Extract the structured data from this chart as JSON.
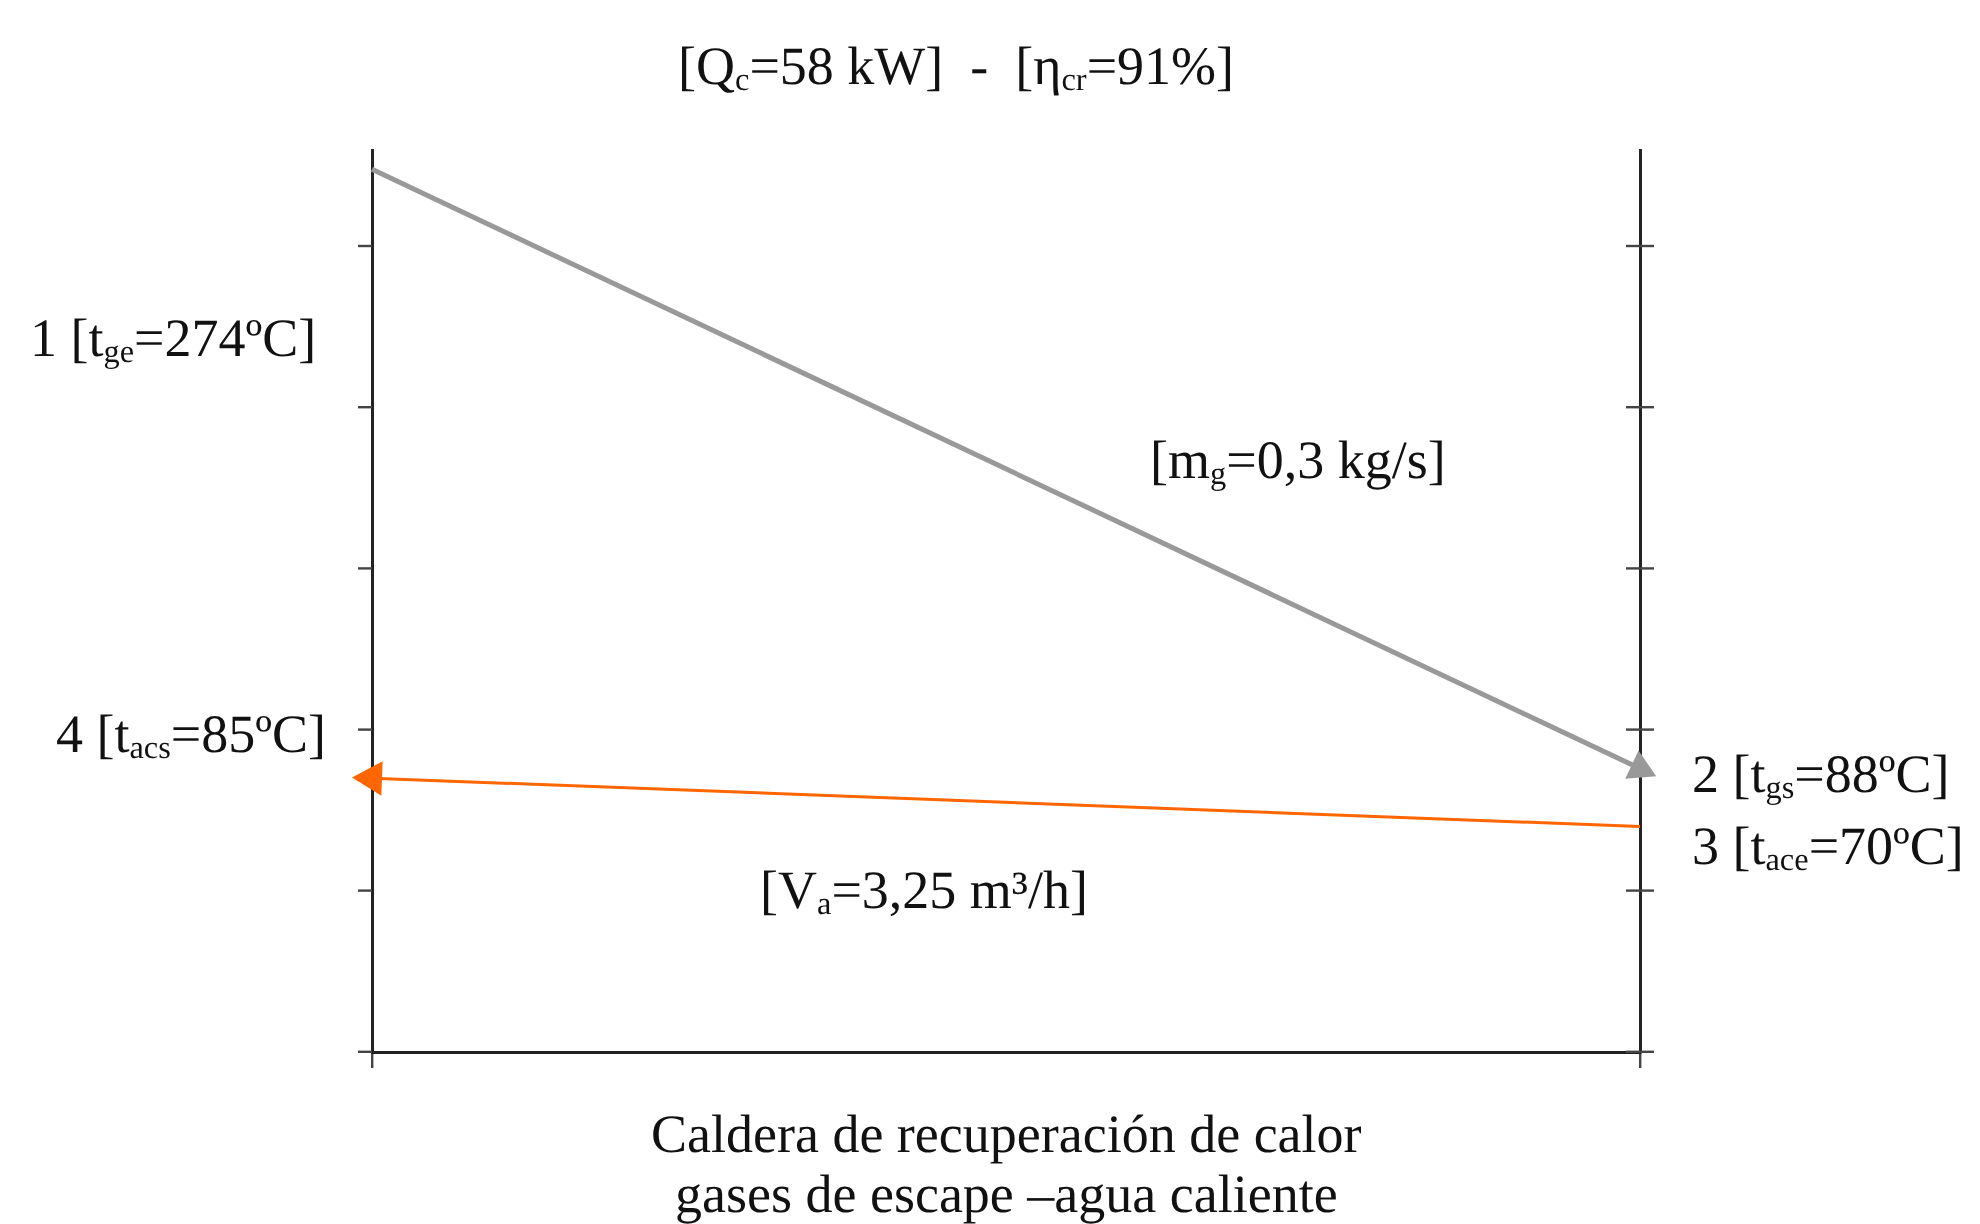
{
  "chart_data": {
    "type": "line",
    "title": "[Q$_{c}$=58 kW]  -  [η$_{cr}$=91%]",
    "xlabel": "Caldera de recuperación de calor\ngases de escape –agua caliente",
    "categories": [
      null,
      null
    ],
    "series": [
      {
        "color": "#999999",
        "values": [
          274,
          88
        ],
        "value_labels": [
          "1 [t$_{ge}$=274ºC]",
          "2 [t$_{gs}$=88ºC]"
        ]
      },
      {
        "color": "#ff6600",
        "values": [
          85,
          70
        ],
        "value_labels": [
          "4 [t$_{acs}$=85ºC]",
          "3 [t$_{ace}$=70ºC]"
        ]
      }
    ],
    "ylim": [
      0,
      280
    ],
    "tick_labels": false,
    "legend": false,
    "line_style": "solid",
    "annotations": [
      "[m$_{g}$=0,3 kg/s]",
      "[V$_{a}$=3,25 m³/h]"
    ]
  }
}
